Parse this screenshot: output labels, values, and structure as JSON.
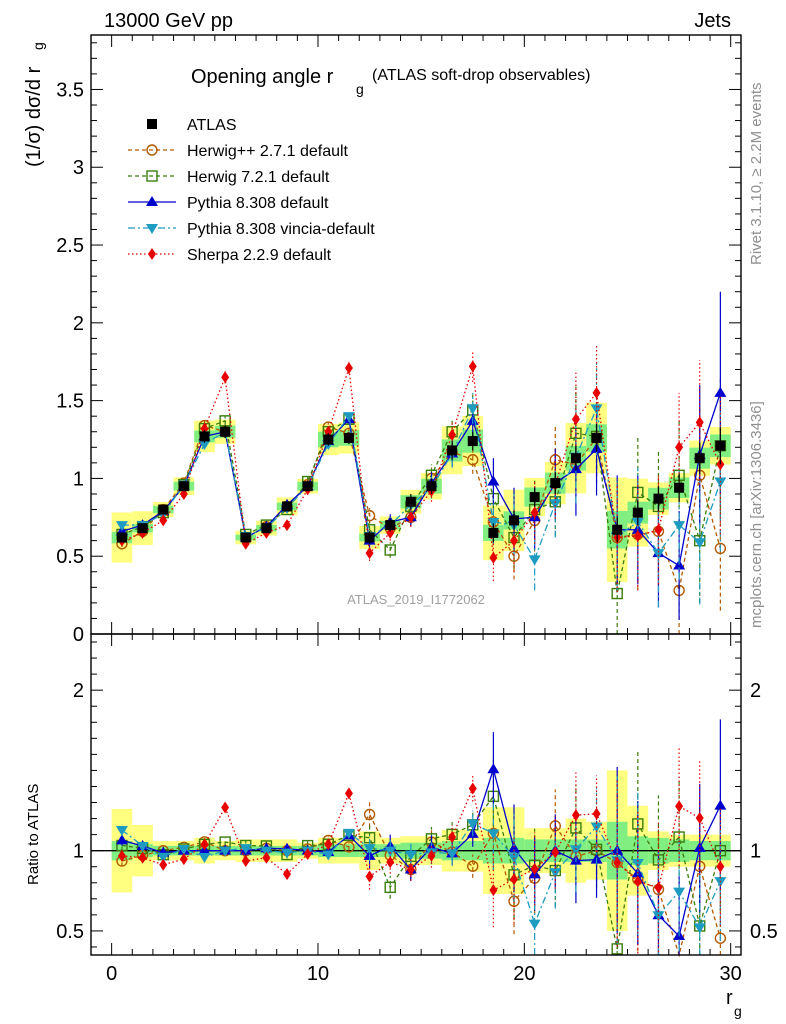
{
  "header": {
    "left": "13000 GeV pp",
    "right": "Jets",
    "side_top": "Rivet 3.1.10, ≥ 2.2M events",
    "side_bottom": "mcplots.cern.ch [arXiv:1306.3436]"
  },
  "chart_data": {
    "type": "line",
    "title_main": "Opening angle r",
    "title_sub": "g",
    "title_rest": "(ATLAS soft-drop observables)",
    "watermark": "ATLAS_2019_I1772062",
    "xlabel_main": "r",
    "xlabel_sub": "g",
    "ylabel_top": "(1/σ) dσ/d r",
    "ylabel_top_sub": "g",
    "ylabel_bottom": "Ratio to ATLAS",
    "xlim": [
      -1,
      30.5
    ],
    "ylim_top": [
      0,
      3.85
    ],
    "ylim_bottom": [
      0.35,
      2.35
    ],
    "x_ticks": [
      0,
      10,
      20,
      30
    ],
    "y_ticks_top": [
      0,
      0.5,
      1,
      1.5,
      2,
      2.5,
      3,
      3.5
    ],
    "y_tick_labels_top": [
      "0",
      "0.5",
      "1",
      "1.5",
      "2",
      "2.5",
      "3",
      "3.5"
    ],
    "y_ticks_bottom": [
      0.5,
      1,
      2
    ],
    "y_tick_labels_bottom": [
      "0.5",
      "1",
      "2"
    ],
    "x": [
      0.5,
      1.5,
      2.5,
      3.5,
      4.5,
      5.5,
      6.5,
      7.5,
      8.5,
      9.5,
      10.5,
      11.5,
      12.5,
      13.5,
      14.5,
      15.5,
      16.5,
      17.5,
      18.5,
      19.5,
      20.5,
      21.5,
      22.5,
      23.5,
      24.5,
      25.5,
      26.5,
      27.5,
      28.5,
      29.5
    ],
    "data": {
      "name": "ATLAS",
      "values": [
        0.62,
        0.68,
        0.8,
        0.95,
        1.27,
        1.3,
        0.62,
        0.68,
        0.82,
        0.95,
        1.25,
        1.26,
        0.62,
        0.7,
        0.85,
        0.95,
        1.18,
        1.24,
        0.65,
        0.73,
        0.88,
        0.97,
        1.13,
        1.26,
        0.67,
        0.78,
        0.87,
        0.94,
        1.13,
        1.21
      ],
      "err": [
        0.03,
        0.03,
        0.03,
        0.03,
        0.04,
        0.04,
        0.03,
        0.03,
        0.03,
        0.03,
        0.04,
        0.04,
        0.04,
        0.04,
        0.05,
        0.05,
        0.06,
        0.06,
        0.06,
        0.06,
        0.06,
        0.07,
        0.08,
        0.09,
        0.08,
        0.08,
        0.08,
        0.09,
        0.1,
        0.12
      ],
      "band_inner": [
        0.06,
        0.04,
        0.03,
        0.03,
        0.03,
        0.03,
        0.03,
        0.03,
        0.03,
        0.03,
        0.04,
        0.04,
        0.04,
        0.04,
        0.05,
        0.05,
        0.06,
        0.06,
        0.08,
        0.08,
        0.07,
        0.07,
        0.07,
        0.07,
        0.18,
        0.09,
        0.08,
        0.07,
        0.06,
        0.06
      ],
      "band_outer": [
        0.26,
        0.16,
        0.06,
        0.06,
        0.08,
        0.06,
        0.07,
        0.07,
        0.07,
        0.05,
        0.08,
        0.08,
        0.12,
        0.08,
        0.09,
        0.09,
        0.13,
        0.13,
        0.27,
        0.27,
        0.14,
        0.14,
        0.2,
        0.18,
        0.5,
        0.28,
        0.12,
        0.1,
        0.1,
        0.1
      ]
    },
    "series": [
      {
        "name": "Herwig++ 2.7.1 default",
        "color": "#b35900",
        "dash": "4,3",
        "marker": "circle-open",
        "values": [
          0.58,
          0.66,
          0.8,
          0.97,
          1.34,
          1.3,
          0.62,
          0.69,
          0.82,
          0.96,
          1.33,
          1.29,
          0.76,
          0.68,
          0.75,
          1.0,
          1.17,
          1.12,
          0.72,
          0.5,
          0.73,
          1.12,
          1.09,
          1.26,
          0.62,
          0.64,
          0.66,
          0.28,
          1.02,
          0.55
        ],
        "err": [
          0.02,
          0.02,
          0.02,
          0.02,
          0.03,
          0.03,
          0.02,
          0.02,
          0.02,
          0.03,
          0.03,
          0.03,
          0.05,
          0.05,
          0.06,
          0.07,
          0.09,
          0.09,
          0.15,
          0.15,
          0.2,
          0.22,
          0.22,
          0.25,
          0.35,
          0.35,
          0.35,
          0.3,
          0.45,
          0.4
        ]
      },
      {
        "name": "Herwig 7.2.1 default",
        "color": "#3a7d0b",
        "dash": "4,3",
        "marker": "square-open",
        "values": [
          0.64,
          0.69,
          0.78,
          0.96,
          1.32,
          1.37,
          0.64,
          0.7,
          0.8,
          0.98,
          1.3,
          1.38,
          0.67,
          0.54,
          0.82,
          1.02,
          1.3,
          1.44,
          0.87,
          0.62,
          0.8,
          0.85,
          1.29,
          1.27,
          0.26,
          0.91,
          0.82,
          1.02,
          0.6,
          1.21
        ],
        "err": [
          0.02,
          0.02,
          0.02,
          0.02,
          0.03,
          0.03,
          0.02,
          0.02,
          0.02,
          0.03,
          0.03,
          0.03,
          0.05,
          0.05,
          0.06,
          0.07,
          0.09,
          0.1,
          0.15,
          0.2,
          0.2,
          0.22,
          0.3,
          0.3,
          0.3,
          0.35,
          0.35,
          0.35,
          0.4,
          0.45
        ]
      },
      {
        "name": "Pythia 8.308 default",
        "color": "#0000cc",
        "dash": "",
        "marker": "triangle-up",
        "values": [
          0.66,
          0.7,
          0.79,
          0.95,
          1.27,
          1.3,
          0.62,
          0.69,
          0.83,
          0.95,
          1.24,
          1.38,
          0.6,
          0.72,
          0.75,
          0.97,
          1.16,
          1.37,
          0.98,
          0.74,
          0.75,
          0.97,
          1.06,
          1.19,
          0.67,
          0.67,
          0.52,
          0.44,
          1.15,
          1.55
        ],
        "err": [
          0.02,
          0.02,
          0.02,
          0.02,
          0.03,
          0.03,
          0.02,
          0.02,
          0.02,
          0.03,
          0.03,
          0.03,
          0.05,
          0.05,
          0.06,
          0.07,
          0.09,
          0.1,
          0.15,
          0.2,
          0.2,
          0.22,
          0.3,
          0.3,
          0.35,
          0.35,
          0.35,
          0.35,
          0.45,
          0.65
        ]
      },
      {
        "name": "Pythia 8.308 vincia-default",
        "color": "#1e9bc0",
        "dash": "7,3,2,3",
        "marker": "triangle-down",
        "values": [
          0.7,
          0.7,
          0.77,
          0.96,
          1.22,
          1.3,
          0.63,
          0.68,
          0.81,
          0.95,
          1.22,
          1.4,
          0.63,
          0.7,
          0.83,
          0.94,
          1.16,
          1.45,
          0.72,
          0.7,
          0.48,
          0.84,
          1.14,
          1.45,
          0.63,
          0.72,
          0.52,
          0.7,
          0.59,
          0.98
        ],
        "err": [
          0.02,
          0.02,
          0.02,
          0.02,
          0.03,
          0.03,
          0.02,
          0.02,
          0.02,
          0.03,
          0.03,
          0.03,
          0.05,
          0.05,
          0.06,
          0.07,
          0.09,
          0.1,
          0.15,
          0.2,
          0.2,
          0.22,
          0.3,
          0.3,
          0.35,
          0.35,
          0.35,
          0.35,
          0.4,
          0.45
        ]
      },
      {
        "name": "Sherpa 2.2.9 default",
        "color": "#e60000",
        "dash": "1.5,2.5",
        "marker": "diamond",
        "values": [
          0.6,
          0.65,
          0.73,
          0.9,
          1.32,
          1.65,
          0.58,
          0.65,
          0.7,
          0.93,
          1.3,
          1.71,
          0.52,
          0.65,
          0.75,
          0.92,
          1.28,
          1.72,
          0.49,
          0.6,
          0.78,
          0.96,
          1.38,
          1.55,
          0.62,
          0.63,
          0.67,
          1.2,
          1.36,
          1.09
        ],
        "err": [
          0.02,
          0.02,
          0.02,
          0.02,
          0.03,
          0.04,
          0.02,
          0.02,
          0.02,
          0.03,
          0.03,
          0.04,
          0.05,
          0.05,
          0.06,
          0.07,
          0.09,
          0.1,
          0.15,
          0.2,
          0.2,
          0.22,
          0.3,
          0.3,
          0.35,
          0.35,
          0.35,
          0.35,
          0.4,
          0.45
        ]
      }
    ],
    "legend_placement": "top-left"
  }
}
